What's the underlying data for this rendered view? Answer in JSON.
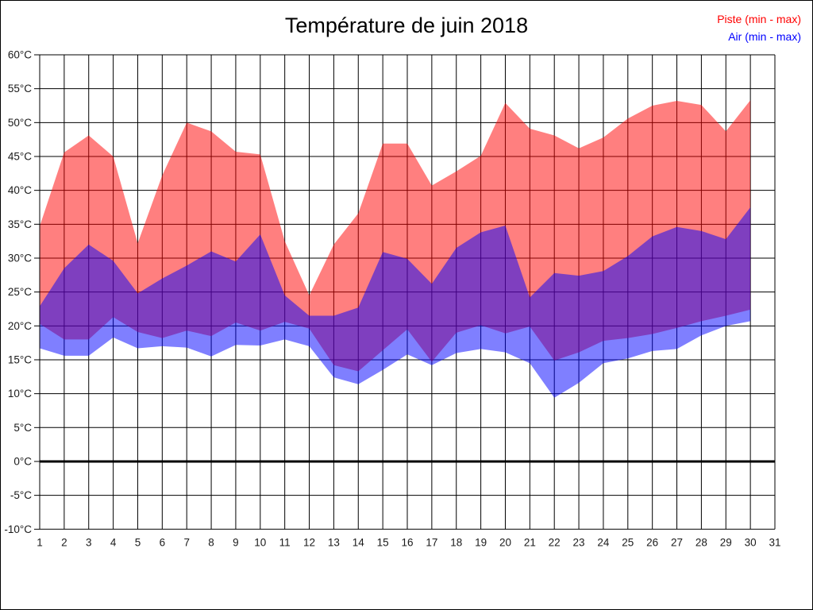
{
  "title": "Température de juin 2018",
  "legend": {
    "piste_label": "Piste (min - max)",
    "air_label": "Air (min - max)",
    "piste_color": "#ff0000",
    "air_color": "#0000ff"
  },
  "chart_data": {
    "type": "area",
    "title": "Température de juin 2018",
    "x_label": "",
    "y_label": "",
    "x": [
      1,
      2,
      3,
      4,
      5,
      6,
      7,
      8,
      9,
      10,
      11,
      12,
      13,
      14,
      15,
      16,
      17,
      18,
      19,
      20,
      21,
      22,
      23,
      24,
      25,
      26,
      27,
      28,
      29,
      30
    ],
    "series": [
      {
        "name": "Piste (min - max)",
        "color": "#ff0000",
        "fill_opacity": 0.5,
        "max": [
          34.7,
          45.6,
          48.1,
          45.0,
          32.2,
          42.2,
          50.0,
          48.7,
          45.7,
          45.3,
          32.5,
          24.5,
          32.0,
          36.6,
          46.9,
          46.9,
          40.7,
          42.8,
          45.1,
          52.9,
          49.1,
          48.1,
          46.2,
          47.8,
          50.6,
          52.5,
          53.2,
          52.6,
          48.7,
          53.3
        ],
        "min": [
          20.3,
          18.0,
          18.0,
          21.3,
          19.1,
          18.2,
          19.3,
          18.5,
          20.5,
          19.3,
          20.6,
          19.6,
          14.2,
          13.3,
          16.4,
          19.5,
          14.7,
          19.0,
          20.1,
          18.9,
          19.9,
          14.9,
          16.1,
          17.8,
          18.2,
          18.8,
          19.7,
          20.7,
          21.5,
          22.4
        ]
      },
      {
        "name": "Air (min - max)",
        "color": "#0000ff",
        "fill_opacity": 0.5,
        "max": [
          22.9,
          28.5,
          32.0,
          29.6,
          24.8,
          27.0,
          28.9,
          31.0,
          29.5,
          33.5,
          24.5,
          21.5,
          21.5,
          22.7,
          30.9,
          29.9,
          26.2,
          31.5,
          33.8,
          34.8,
          24.2,
          27.8,
          27.4,
          28.1,
          30.3,
          33.2,
          34.6,
          34.0,
          32.8,
          37.5
        ],
        "min": [
          16.7,
          15.6,
          15.6,
          18.3,
          16.7,
          17.0,
          16.8,
          15.5,
          17.2,
          17.1,
          18.0,
          17.0,
          12.4,
          11.4,
          13.5,
          15.8,
          14.2,
          16.0,
          16.6,
          16.1,
          14.5,
          9.4,
          11.6,
          14.5,
          15.2,
          16.3,
          16.6,
          18.6,
          20.0,
          20.7
        ]
      }
    ],
    "ylim": [
      -10,
      60
    ],
    "xlim": [
      1,
      31
    ],
    "y_ticks": [
      60,
      55,
      50,
      45,
      40,
      35,
      30,
      25,
      20,
      15,
      10,
      5,
      0,
      -5,
      -10
    ],
    "y_tick_labels": [
      "60°C",
      "55°C",
      "50°C",
      "45°C",
      "40°C",
      "35°C",
      "30°C",
      "25°C",
      "20°C",
      "15°C",
      "10°C",
      "5°C",
      "0°C",
      "-5°C",
      "-10°C"
    ],
    "x_ticks": [
      1,
      2,
      3,
      4,
      5,
      6,
      7,
      8,
      9,
      10,
      11,
      12,
      13,
      14,
      15,
      16,
      17,
      18,
      19,
      20,
      21,
      22,
      23,
      24,
      25,
      26,
      27,
      28,
      29,
      30,
      31
    ],
    "x_tick_labels": [
      "1",
      "2",
      "3",
      "4",
      "5",
      "6",
      "7",
      "8",
      "9",
      "10",
      "11",
      "12",
      "13",
      "14",
      "15",
      "16",
      "17",
      "18",
      "19",
      "20",
      "21",
      "22",
      "23",
      "24",
      "25",
      "26",
      "27",
      "28",
      "29",
      "30",
      "31"
    ],
    "grid": true,
    "zero_line_value": 0,
    "legend_position": "top-right"
  }
}
